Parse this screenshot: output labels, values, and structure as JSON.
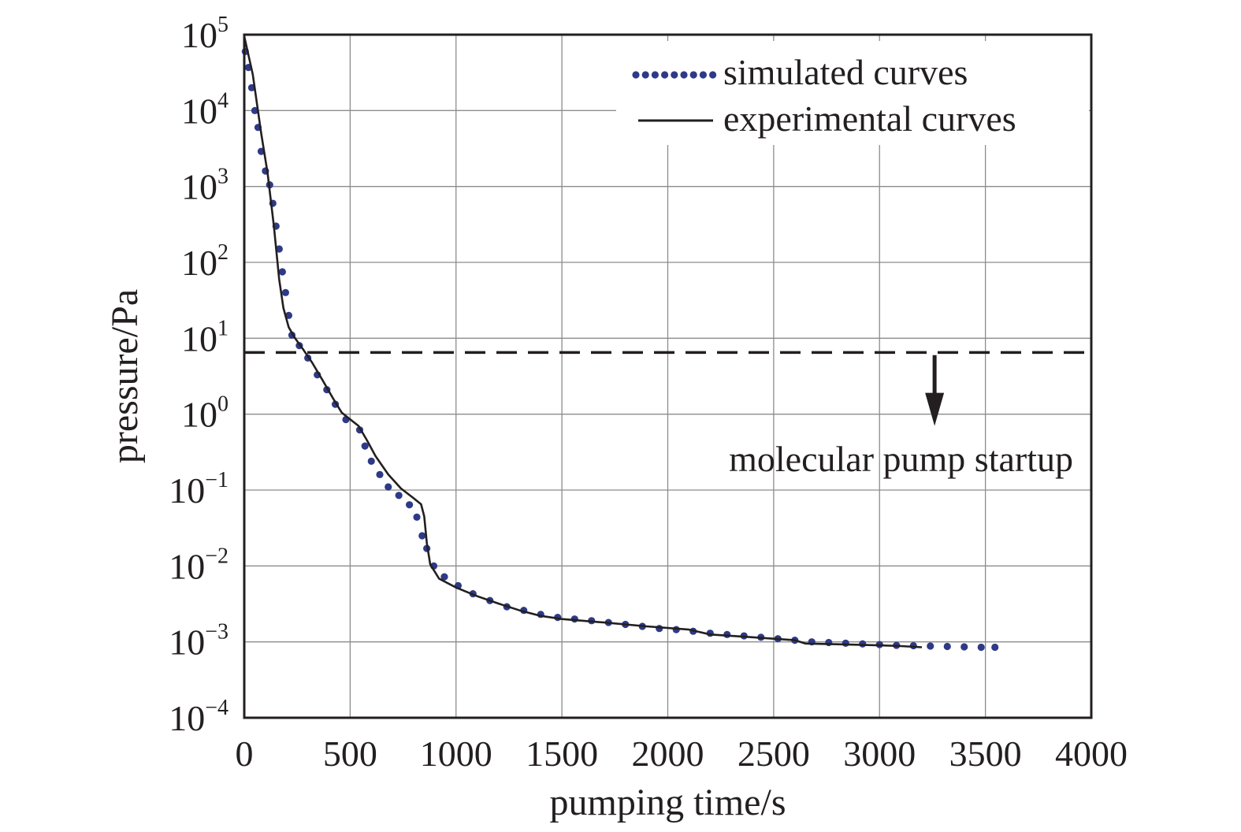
{
  "chart_data": {
    "type": "line",
    "xlabel": "pumping time/s",
    "ylabel": "pressure/Pa",
    "x_ticks": [
      "0",
      "500",
      "1000",
      "1500",
      "2000",
      "2500",
      "3000",
      "3500",
      "4000"
    ],
    "y_ticks": [
      {
        "base": "10",
        "exp": "5"
      },
      {
        "base": "10",
        "exp": "4"
      },
      {
        "base": "10",
        "exp": "3"
      },
      {
        "base": "10",
        "exp": "2"
      },
      {
        "base": "10",
        "exp": "1"
      },
      {
        "base": "10",
        "exp": "0"
      },
      {
        "base": "10",
        "exp": "−1"
      },
      {
        "base": "10",
        "exp": "−2"
      },
      {
        "base": "10",
        "exp": "−3"
      },
      {
        "base": "10",
        "exp": "−4"
      }
    ],
    "xlim": [
      0,
      4000
    ],
    "ylim": [
      0.0001,
      100000
    ],
    "y_scale": "log",
    "grid": true,
    "legend_position": "top-right",
    "series": [
      {
        "name": "simulated curves",
        "style": "dotted",
        "color": "#2e3a87",
        "points": [
          [
            5,
            60000
          ],
          [
            20,
            37000
          ],
          [
            35,
            20000
          ],
          [
            50,
            10000
          ],
          [
            65,
            6000
          ],
          [
            80,
            2900
          ],
          [
            100,
            1600
          ],
          [
            120,
            1050
          ],
          [
            135,
            600
          ],
          [
            150,
            300
          ],
          [
            165,
            150
          ],
          [
            180,
            75
          ],
          [
            195,
            40
          ],
          [
            210,
            20
          ],
          [
            225,
            11
          ],
          [
            260,
            8
          ],
          [
            300,
            5.5
          ],
          [
            345,
            3.3
          ],
          [
            390,
            2.1
          ],
          [
            430,
            1.35
          ],
          [
            480,
            0.85
          ],
          [
            545,
            0.62
          ],
          [
            570,
            0.38
          ],
          [
            600,
            0.24
          ],
          [
            640,
            0.16
          ],
          [
            680,
            0.11
          ],
          [
            730,
            0.085
          ],
          [
            780,
            0.064
          ],
          [
            815,
            0.044
          ],
          [
            840,
            0.025
          ],
          [
            862,
            0.017
          ],
          [
            895,
            0.01
          ],
          [
            945,
            0.0072
          ],
          [
            1010,
            0.0055
          ],
          [
            1080,
            0.0043
          ],
          [
            1160,
            0.0035
          ],
          [
            1240,
            0.0029
          ],
          [
            1320,
            0.0026
          ],
          [
            1400,
            0.0023
          ],
          [
            1480,
            0.0021
          ],
          [
            1560,
            0.002
          ],
          [
            1640,
            0.0019
          ],
          [
            1720,
            0.0018
          ],
          [
            1800,
            0.0017
          ],
          [
            1880,
            0.0016
          ],
          [
            1960,
            0.0015
          ],
          [
            2040,
            0.00145
          ],
          [
            2120,
            0.00138
          ],
          [
            2200,
            0.0013
          ],
          [
            2280,
            0.00125
          ],
          [
            2360,
            0.0012
          ],
          [
            2440,
            0.00115
          ],
          [
            2520,
            0.0011
          ],
          [
            2600,
            0.00105
          ],
          [
            2680,
            0.001
          ],
          [
            2760,
            0.00098
          ],
          [
            2840,
            0.00096
          ],
          [
            2920,
            0.00094
          ],
          [
            3000,
            0.00092
          ],
          [
            3080,
            0.0009
          ],
          [
            3160,
            0.00089
          ],
          [
            3240,
            0.00088
          ],
          [
            3320,
            0.00087
          ],
          [
            3400,
            0.00086
          ],
          [
            3480,
            0.00085
          ],
          [
            3545,
            0.00085
          ]
        ]
      },
      {
        "name": "experimental curves",
        "style": "solid",
        "color": "#231f20",
        "points": [
          [
            0,
            95000
          ],
          [
            40,
            30000
          ],
          [
            80,
            5000
          ],
          [
            110,
            1500
          ],
          [
            140,
            300
          ],
          [
            165,
            60
          ],
          [
            185,
            25
          ],
          [
            210,
            14
          ],
          [
            240,
            10
          ],
          [
            280,
            7
          ],
          [
            320,
            4.8
          ],
          [
            370,
            2.8
          ],
          [
            420,
            1.6
          ],
          [
            460,
            1.05
          ],
          [
            490,
            0.9
          ],
          [
            540,
            0.7
          ],
          [
            580,
            0.45
          ],
          [
            620,
            0.28
          ],
          [
            680,
            0.16
          ],
          [
            740,
            0.105
          ],
          [
            800,
            0.078
          ],
          [
            835,
            0.065
          ],
          [
            850,
            0.045
          ],
          [
            862,
            0.02
          ],
          [
            878,
            0.0105
          ],
          [
            920,
            0.0068
          ],
          [
            1000,
            0.0052
          ],
          [
            1100,
            0.004
          ],
          [
            1200,
            0.0032
          ],
          [
            1300,
            0.0026
          ],
          [
            1400,
            0.0022
          ],
          [
            1500,
            0.002
          ],
          [
            1700,
            0.0018
          ],
          [
            1900,
            0.0016
          ],
          [
            2100,
            0.00145
          ],
          [
            2200,
            0.00125
          ],
          [
            2400,
            0.00115
          ],
          [
            2600,
            0.00105
          ],
          [
            2650,
            0.00095
          ],
          [
            2800,
            0.00093
          ],
          [
            3000,
            0.0009
          ],
          [
            3100,
            0.00088
          ],
          [
            3200,
            0.00085
          ]
        ]
      }
    ],
    "reference_line": {
      "y": 6.5,
      "style": "dashed"
    },
    "annotation": {
      "text": "molecular pump startup",
      "arrow_x": 3260,
      "arrow_from_y": 6.0,
      "arrow_to_y": 0.7
    }
  }
}
